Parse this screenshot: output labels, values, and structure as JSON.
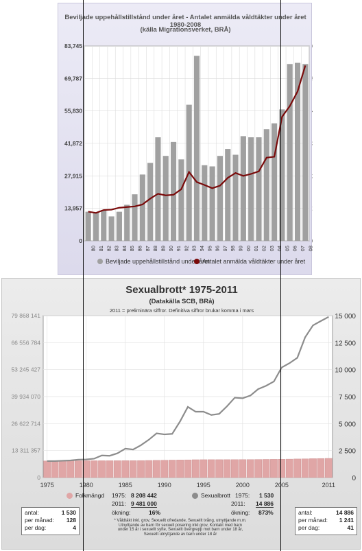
{
  "chart_data": [
    {
      "type": "bar",
      "title": "Beviljade uppehållstillstånd under året - Antalet anmälda våldtäkter under året 1980-2008",
      "subtitle": "(källa Migrationsverket, BRÅ)",
      "categories": [
        "80",
        "81",
        "82",
        "83",
        "84",
        "85",
        "86",
        "87",
        "88",
        "89",
        "90",
        "91",
        "92",
        "93",
        "94",
        "95",
        "96",
        "97",
        "98",
        "99",
        "00",
        "01",
        "02",
        "03",
        "04",
        "05",
        "06",
        "07",
        "08"
      ],
      "y_ticks_left": [
        "0",
        "13,957",
        "27,915",
        "41,872",
        "55,830",
        "69,787",
        "83,745"
      ],
      "y_ticks_right": [
        "0",
        "1,000",
        "2,000",
        "3,000",
        "4,000",
        "5,000",
        "6,000"
      ],
      "ylim_left": [
        0,
        83745
      ],
      "ylim_right": [
        0,
        6000
      ],
      "grid": true,
      "legend_position": "bottom",
      "series": [
        {
          "name": "Beviljade uppehållstillstånd under året",
          "kind": "bar",
          "axis": "left",
          "color": "#a0a0a0",
          "values": [
            12500,
            12200,
            13200,
            10500,
            12500,
            15500,
            20000,
            28500,
            33500,
            44500,
            36500,
            42500,
            35000,
            58500,
            79500,
            32500,
            32000,
            36500,
            39500,
            37000,
            45000,
            44500,
            44500,
            48000,
            50500,
            56500,
            76000,
            76500,
            76000
          ]
        },
        {
          "name": "Antalet anmälda våldtäkter under året",
          "kind": "line",
          "axis": "right",
          "color": "#7a0a0a",
          "values": [
            900,
            860,
            950,
            960,
            1020,
            1040,
            1060,
            1120,
            1300,
            1450,
            1400,
            1420,
            1590,
            2120,
            1810,
            1720,
            1620,
            1700,
            1940,
            2090,
            2000,
            2060,
            2140,
            2560,
            2590,
            3820,
            4150,
            4600,
            5400
          ]
        }
      ]
    },
    {
      "type": "line",
      "title": "Sexualbrott* 1975-2011",
      "subtitle": "(Datakälla SCB, BRå)",
      "note": "2011 = preliminära siffror. Definitiva siffror brukar komma i mars",
      "x": [
        1975,
        1976,
        1977,
        1978,
        1979,
        1980,
        1981,
        1982,
        1983,
        1984,
        1985,
        1986,
        1987,
        1988,
        1989,
        1990,
        1991,
        1992,
        1993,
        1994,
        1995,
        1996,
        1997,
        1998,
        1999,
        2000,
        2001,
        2002,
        2003,
        2004,
        2005,
        2006,
        2007,
        2008,
        2009,
        2010,
        2011
      ],
      "x_ticks": [
        "1975",
        "1980",
        "1985",
        "1990",
        "1995",
        "2000",
        "2005",
        "2011"
      ],
      "y_ticks_left": [
        "0",
        "13 311 357",
        "26 622 714",
        "39 934 070",
        "53 245 427",
        "66 556 784",
        "79 868 141"
      ],
      "y_ticks_right": [
        "0",
        "2 500",
        "5 000",
        "7 500",
        "10 000",
        "12 500",
        "15 000"
      ],
      "ylim_left": [
        0,
        79868141
      ],
      "ylim_right": [
        0,
        15000
      ],
      "grid": true,
      "legend_position": "bottom",
      "series": [
        {
          "name": "Folkmängd",
          "kind": "bar",
          "axis": "left",
          "color": "#e0a6a6",
          "values": [
            8208442,
            8236000,
            8255000,
            8276000,
            8294000,
            8318000,
            8323000,
            8327000,
            8331000,
            8343000,
            8358000,
            8382000,
            8414000,
            8458000,
            8527000,
            8590000,
            8644000,
            8692000,
            8745000,
            8816000,
            8837000,
            8844000,
            8847000,
            8854000,
            8861000,
            8883000,
            8909000,
            8941000,
            8976000,
            9011000,
            9048000,
            9113000,
            9183000,
            9256000,
            9341000,
            9416000,
            9481000
          ]
        },
        {
          "name": "Sexualbrott",
          "kind": "line",
          "axis": "right",
          "color": "#8c8c8c",
          "values": [
            1530,
            1530,
            1560,
            1590,
            1660,
            1680,
            1750,
            2050,
            2020,
            2250,
            2680,
            2600,
            3000,
            3500,
            4100,
            4000,
            4050,
            5200,
            6550,
            6100,
            6100,
            5800,
            5900,
            6600,
            7400,
            7350,
            7600,
            8200,
            8500,
            8900,
            10200,
            10600,
            11100,
            13000,
            14100,
            14500,
            14886
          ]
        }
      ],
      "stats": {
        "folk_label": "Folkmängd",
        "folk_1975_label": "1975:",
        "folk_1975": "8 208 442",
        "folk_2011_label": "2011:",
        "folk_2011": "9 481 000",
        "folk_okning_label": "ökning:",
        "folk_okning": "16%",
        "sex_label": "Sexualbrott",
        "sex_1975_label": "1975:",
        "sex_1975": "1 530",
        "sex_2011_label": "2011:",
        "sex_2011": "14 886",
        "sex_okning_label": "ökning:",
        "sex_okning": "873%"
      },
      "box_left": {
        "antal_label": "antal:",
        "antal": "1 530",
        "manad_label": "per månad:",
        "manad": "128",
        "dag_label": "per dag:",
        "dag": "4"
      },
      "box_right": {
        "antal_label": "antal:",
        "antal": "14 886",
        "manad_label": "per månad:",
        "manad": "1 241",
        "dag_label": "per dag:",
        "dag": "41"
      },
      "footnote": [
        "* Våldtäkt inkl. grov, Sexuellt ofredande, Sexuellt tvång, utnyttjande m.m.",
        "Utnyttjande av barn för sexuell posering inkl grov, Kontakt med barn",
        "under 15 år i sexuellt syfte, Sexuellt övergrepp mot barn under 18 år,",
        "Sexuellt utnyttjande av barn under 18 år"
      ]
    }
  ],
  "colors": {
    "bar1": "#a0a0a0",
    "line1": "#7a0a0a",
    "bar2": "#e0a6a6",
    "line2": "#8c8c8c"
  }
}
